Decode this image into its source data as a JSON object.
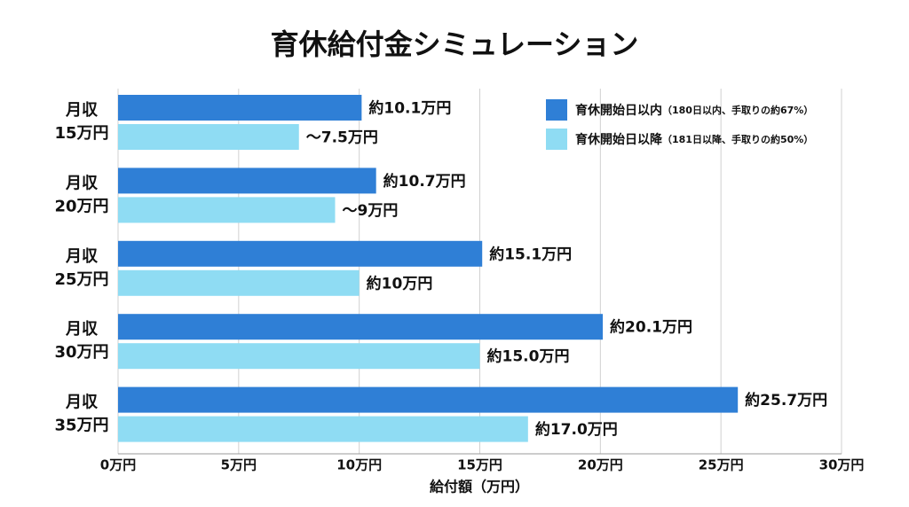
{
  "chart_data": {
    "type": "hbar",
    "title": "育休給付金シミュレーション",
    "categories": [
      [
        "月収",
        "15万円"
      ],
      [
        "月収",
        "20万円"
      ],
      [
        "月収",
        "25万円"
      ],
      [
        "月収",
        "30万円"
      ],
      [
        "月収",
        "35万円"
      ]
    ],
    "series": [
      {
        "name": "育休開始日以内",
        "name_note": "（180日以内、手取りの約67%）",
        "color": "#2f7fd6",
        "values": [
          10.1,
          10.7,
          15.1,
          20.1,
          25.7
        ],
        "value_labels": [
          "約10.1万円",
          "約10.7万円",
          "約15.1万円",
          "約20.1万円",
          "約25.7万円"
        ]
      },
      {
        "name": "育休開始日以降",
        "name_note": "（181日以降、手取りの約50%）",
        "color": "#8fdcf3",
        "values": [
          7.5,
          9,
          10,
          15.0,
          17.0
        ],
        "value_labels": [
          "～7.5万円",
          "～9万円",
          "約10万円",
          "約15.0万円",
          "約17.0万円"
        ]
      }
    ],
    "xlim": [
      0,
      30
    ],
    "xticks": [
      {
        "value": 0,
        "label": "0万円"
      },
      {
        "value": 5,
        "label": "5万円"
      },
      {
        "value": 10,
        "label": "10万円"
      },
      {
        "value": 15,
        "label": "15万円"
      },
      {
        "value": 20,
        "label": "20万円"
      },
      {
        "value": 25,
        "label": "25万円"
      },
      {
        "value": 30,
        "label": "30万円"
      }
    ],
    "xlabel": "給付額（万円）",
    "grid": true,
    "legend": "upper right"
  }
}
